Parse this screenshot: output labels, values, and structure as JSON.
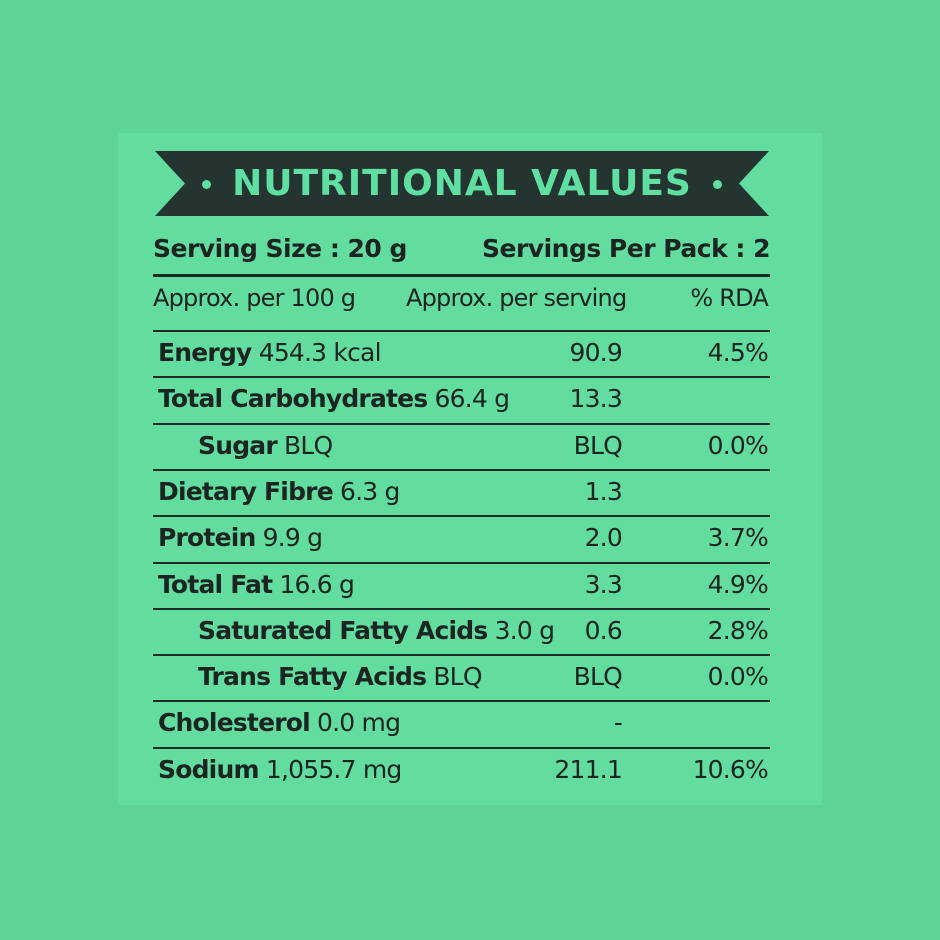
{
  "title": "NUTRITIONAL VALUES",
  "serving_size": "Serving Size : 20 g",
  "servings_per_pack": "Servings Per Pack : 2",
  "headers": {
    "per_100g": "Approx. per 100 g",
    "per_serving": "Approx. per serving",
    "rda": "% RDA"
  },
  "rows": [
    {
      "name": "Energy",
      "amount": "454.3 kcal",
      "serving": "90.9",
      "rda": "4.5%",
      "indent": 0
    },
    {
      "name": "Total Carbohydrates",
      "amount": "66.4 g",
      "serving": "13.3",
      "rda": "",
      "indent": 0
    },
    {
      "name": "Sugar",
      "amount": "BLQ",
      "serving": "BLQ",
      "rda": "0.0%",
      "indent": 1
    },
    {
      "name": "Dietary Fibre",
      "amount": "6.3 g",
      "serving": "1.3",
      "rda": "",
      "indent": 0
    },
    {
      "name": "Protein",
      "amount": "9.9 g",
      "serving": "2.0",
      "rda": "3.7%",
      "indent": 0
    },
    {
      "name": "Total Fat",
      "amount": "16.6 g",
      "serving": "3.3",
      "rda": "4.9%",
      "indent": 0
    },
    {
      "name": "Saturated Fatty Acids",
      "amount": "3.0 g",
      "serving": "0.6",
      "rda": "2.8%",
      "indent": 1
    },
    {
      "name": "Trans Fatty Acids",
      "amount": "BLQ",
      "serving": "BLQ",
      "rda": "0.0%",
      "indent": 1
    },
    {
      "name": "Cholesterol",
      "amount": "0.0 mg",
      "serving": "-",
      "rda": "",
      "indent": 0
    },
    {
      "name": "Sodium",
      "amount": "1,055.7 mg",
      "serving": "211.1",
      "rda": "10.6%",
      "indent": 0
    }
  ],
  "colors": {
    "background": "#5ed597",
    "panel": "#62dc9f",
    "banner": "#243430",
    "text": "#1a2420"
  }
}
